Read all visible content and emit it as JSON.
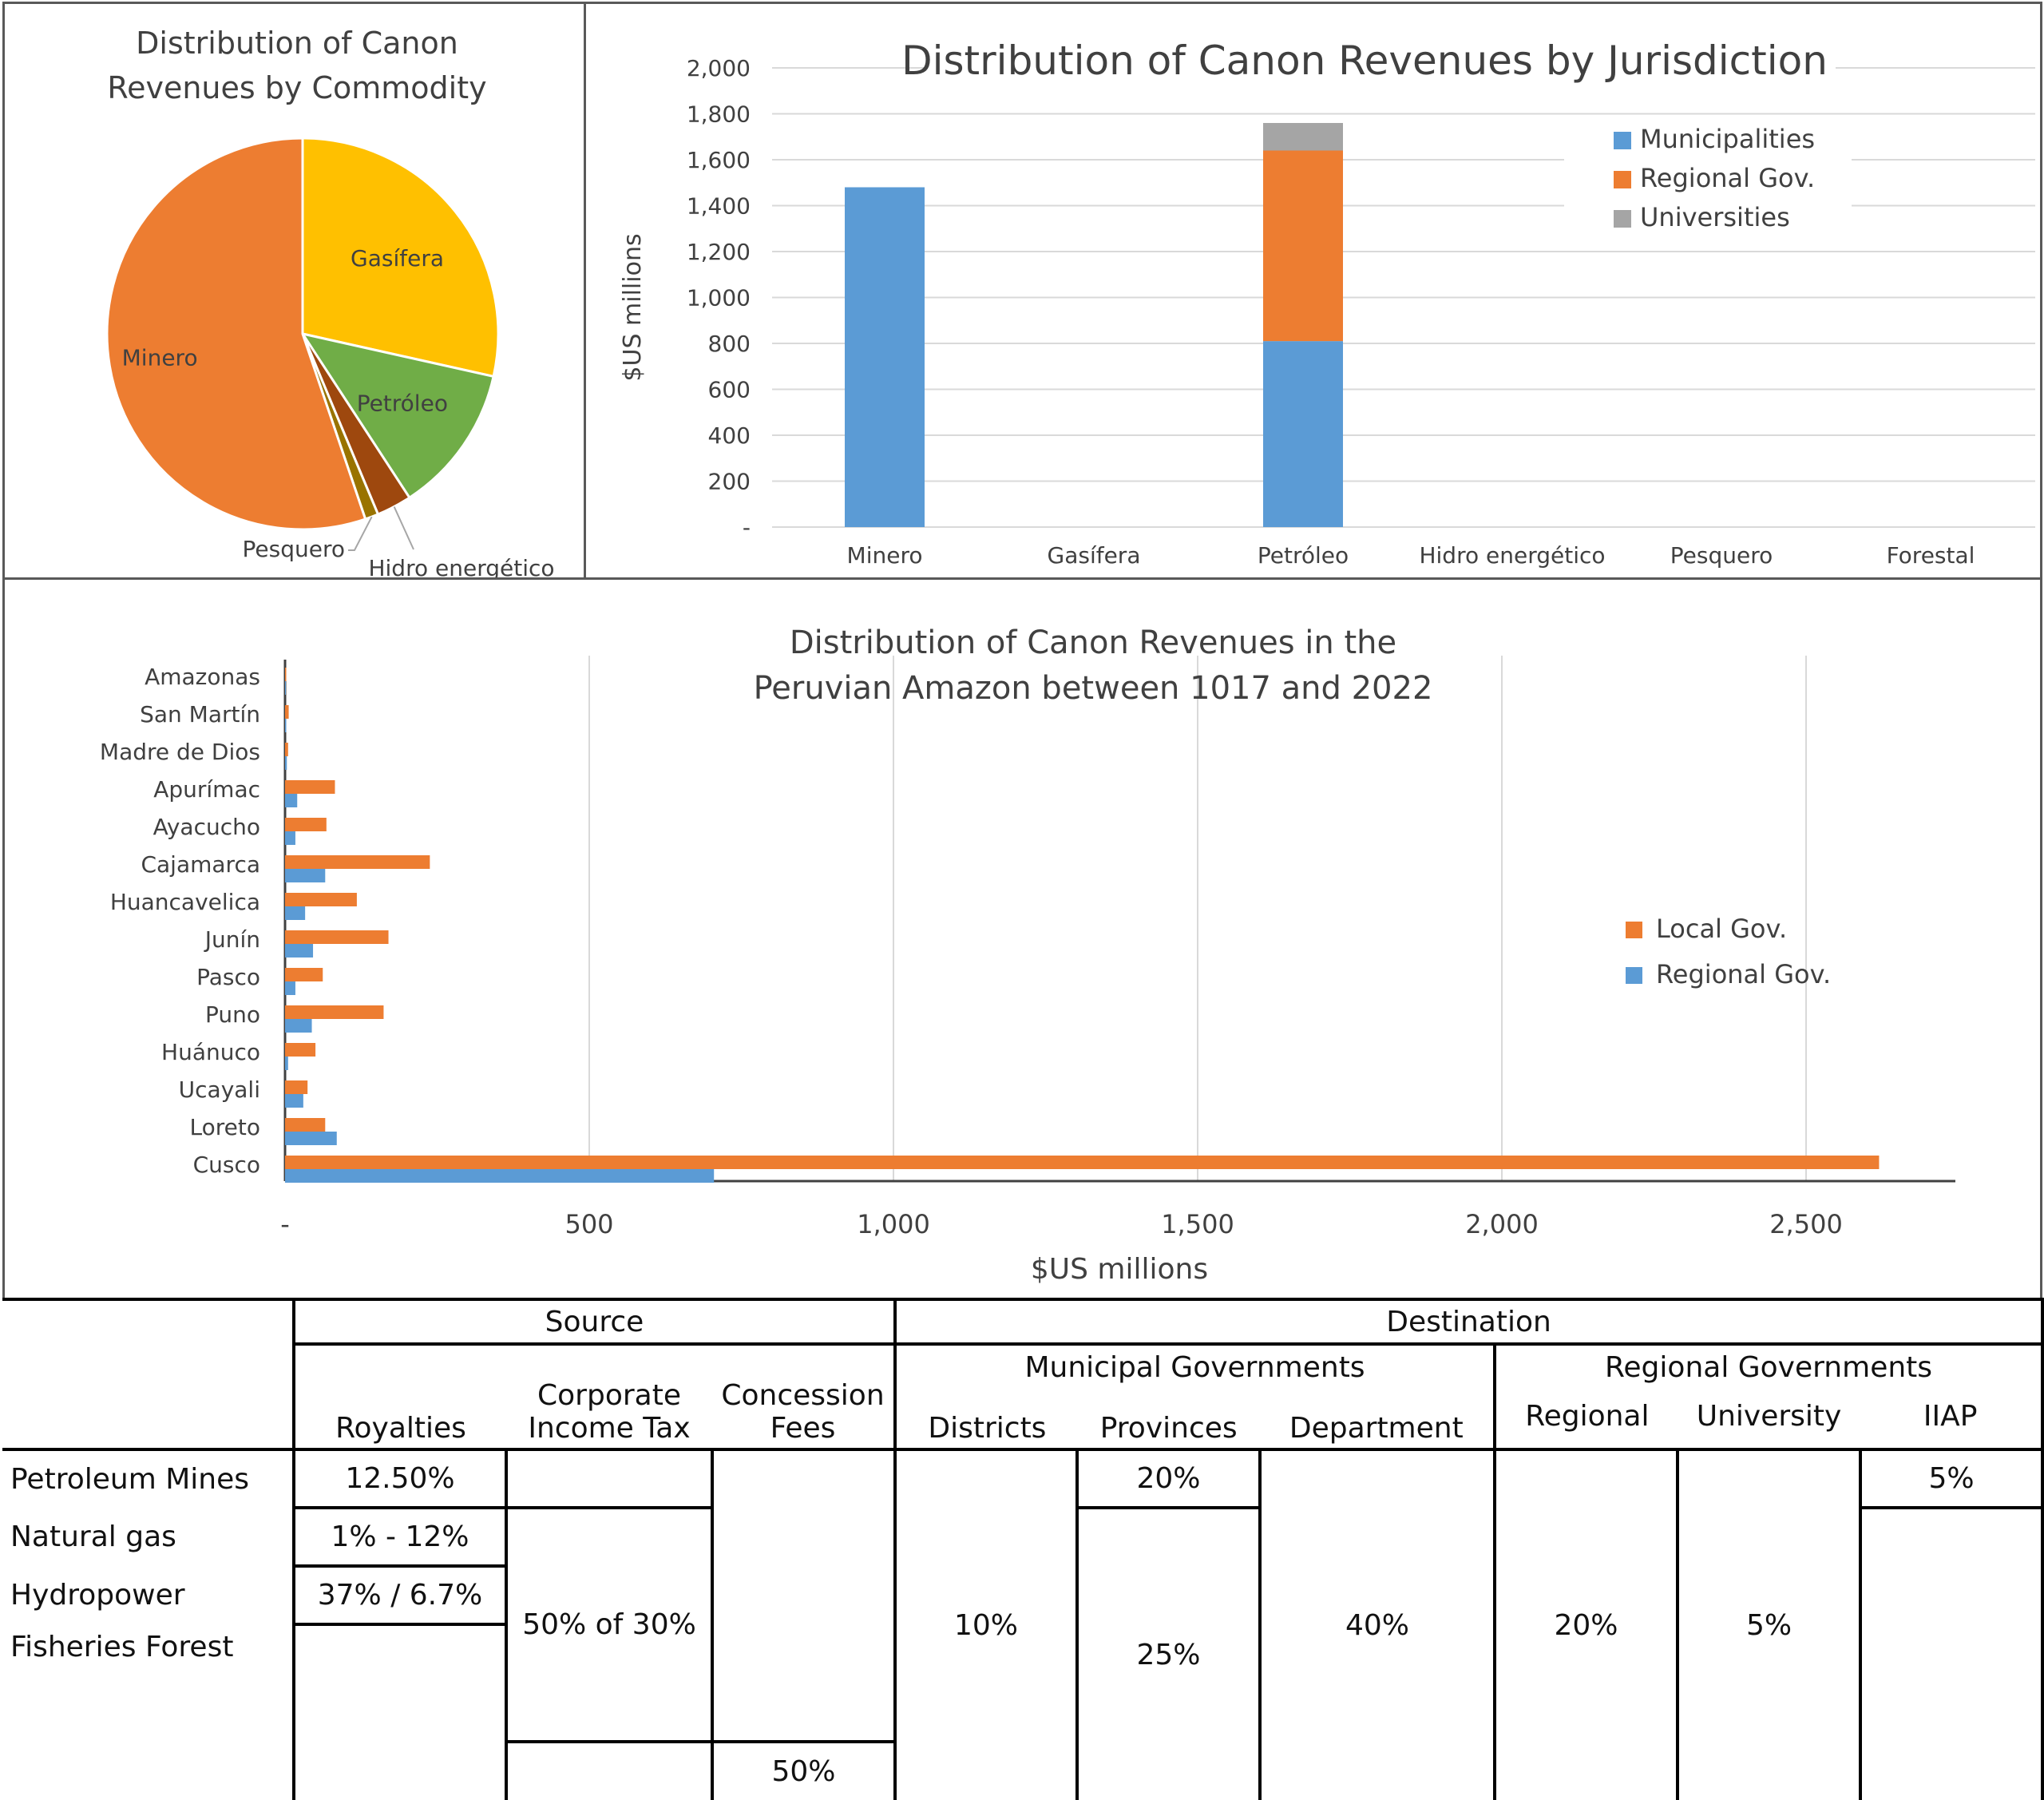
{
  "chart_data": [
    {
      "type": "pie",
      "title": "Distribution of Canon Revenues by Commodity",
      "categories": [
        "Gasífera",
        "Petróleo",
        "Hidro energético",
        "Pesquero",
        "Minero"
      ],
      "values": [
        28.5,
        12.3,
        2.9,
        1.1,
        55.2
      ],
      "colors": [
        "#FFC000",
        "#70AD47",
        "#9E480E",
        "#997300",
        "#ED7D31"
      ]
    },
    {
      "type": "bar",
      "stacked": true,
      "title": "Distribution of Canon Revenues by Jurisdiction",
      "xlabel": "",
      "ylabel": "$US millions",
      "ylim": [
        0,
        2000
      ],
      "yticks": [
        "-",
        "200",
        "400",
        "600",
        "800",
        "1,000",
        "1,200",
        "1,400",
        "1,600",
        "1,800",
        "2,000"
      ],
      "categories": [
        "Minero",
        "Gasífera",
        "Petróleo",
        "Hidro energético",
        "Pesquero",
        "Forestal"
      ],
      "series": [
        {
          "name": "Municipalities",
          "color": "#5B9BD5",
          "values": [
            1480,
            0,
            810,
            0,
            0,
            0
          ]
        },
        {
          "name": "Regional Gov.",
          "color": "#ED7D31",
          "values": [
            0,
            0,
            830,
            0,
            0,
            0
          ]
        },
        {
          "name": "Universities",
          "color": "#A5A5A5",
          "values": [
            0,
            0,
            120,
            0,
            0,
            0
          ]
        }
      ],
      "legend": "top-right",
      "grid": true
    },
    {
      "type": "bar",
      "orientation": "horizontal",
      "title": "Distribution of Canon Revenues in the Peruvian Amazon between 1017 and 2022",
      "title_lines": [
        "Distribution of Canon Revenues in the",
        "Peruvian Amazon between 1017 and 2022"
      ],
      "xlabel": "$US millions",
      "ylabel": "",
      "xlim": [
        0,
        2750
      ],
      "xticks": [
        "-",
        "500",
        "1,000",
        "1,500",
        "2,000",
        "2,500"
      ],
      "categories": [
        "Amazonas",
        "San Martín",
        "Madre de Dios",
        "Apurímac",
        "Ayacucho",
        "Cajamarca",
        "Huancavelica",
        "Junín",
        "Pasco",
        "Puno",
        "Huánuco",
        "Ucayali",
        "Loreto",
        "Cusco"
      ],
      "series": [
        {
          "name": "Local Gov.",
          "color": "#ED7D31",
          "values": [
            2,
            6,
            5,
            82,
            68,
            238,
            118,
            170,
            62,
            162,
            50,
            37,
            66,
            2620
          ]
        },
        {
          "name": "Regional Gov.",
          "color": "#5B9BD5",
          "values": [
            1,
            2,
            3,
            20,
            17,
            66,
            33,
            46,
            17,
            44,
            5,
            30,
            85,
            705
          ]
        }
      ],
      "legend": "right",
      "grid": true
    }
  ],
  "table": {
    "source_header": "Source",
    "destination_header": "Destination",
    "municipal_header": "Municipal Governments",
    "regional_header": "Regional Governments",
    "col_royalties": "Royalties",
    "col_cit_1": "Corporate",
    "col_cit_2": "Income Tax",
    "col_fees_1": "Concession",
    "col_fees_2": "Fees",
    "col_districts": "Districts",
    "col_provinces": "Provinces",
    "col_department": "Department",
    "col_regional": "Regional",
    "col_university": "University",
    "col_iiap": "IIAP",
    "row_petroleum": "Petroleum Mines",
    "row_gas": "Natural gas",
    "row_hydro": "Hydropower",
    "row_fisheries": "Fisheries Forest",
    "roy_petroleum": "12.50%",
    "roy_gas": "1% - 12%",
    "roy_hydro": "37% / 6.7%",
    "cit_value": "50% of 30%",
    "fees_value": "50%",
    "districts_value": "10%",
    "provinces_top": "20%",
    "provinces_bottom": "25%",
    "department_value": "40%",
    "regional_value": "20%",
    "university_value": "5%",
    "iiap_value": "5%"
  }
}
